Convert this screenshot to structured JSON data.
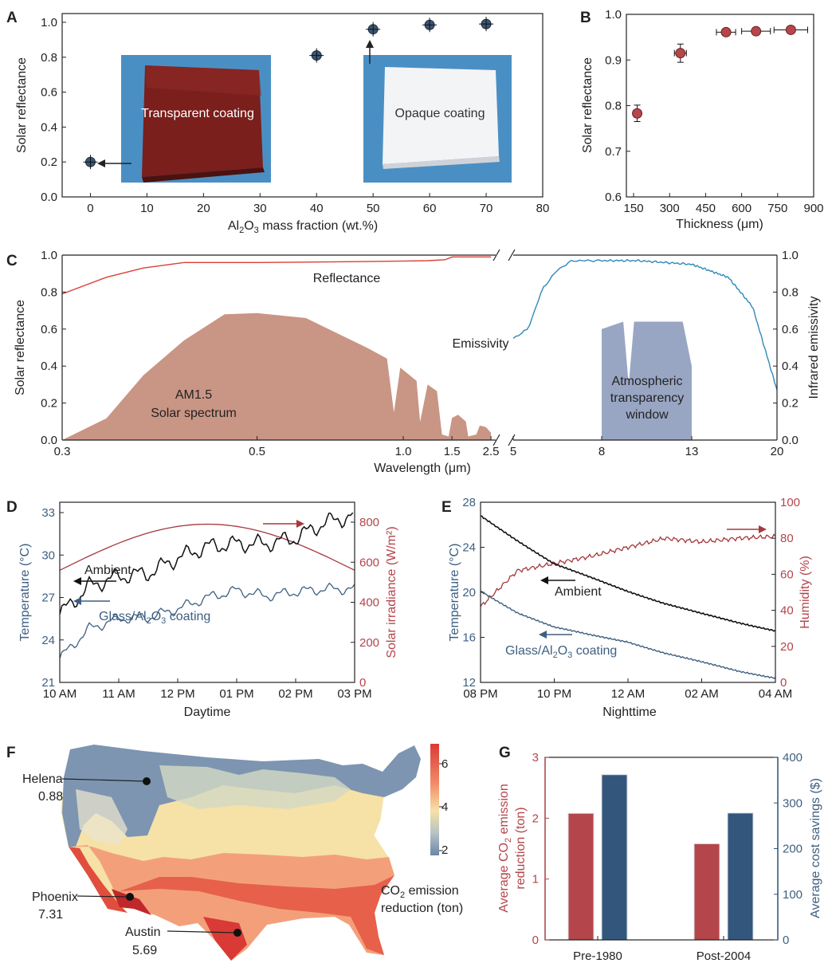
{
  "panels": {
    "A": {
      "label": "A",
      "chart_data": {
        "type": "scatter",
        "x": [
          0,
          40,
          50,
          60,
          70
        ],
        "y": [
          0.2,
          0.81,
          0.96,
          0.985,
          0.99
        ],
        "xlabel_parts": [
          "Al",
          "2",
          "O",
          "3",
          " mass fraction (wt.%)"
        ],
        "ylabel": "Solar reflectance",
        "xlim": [
          -5,
          80
        ],
        "ylim": [
          0,
          1.05
        ],
        "xticks": [
          "0",
          "10",
          "20",
          "30",
          "40",
          "50",
          "60",
          "70",
          "80"
        ],
        "yticks": [
          "0.0",
          "0.2",
          "0.4",
          "0.6",
          "0.8",
          "1.0"
        ],
        "annotations": [
          "Transparent coating",
          "Opaque coating"
        ]
      },
      "colors": {
        "marker": "#3a5775",
        "transparent_photo": "#7a1f1c",
        "opaque_photo": "#f3f4f6",
        "photo_bg": "#4a8fc4"
      }
    },
    "B": {
      "label": "B",
      "chart_data": {
        "type": "scatter",
        "x": [
          165,
          345,
          535,
          660,
          805
        ],
        "y": [
          0.783,
          0.915,
          0.961,
          0.963,
          0.966
        ],
        "xerr": [
          15,
          25,
          40,
          60,
          70
        ],
        "yerr": [
          0.018,
          0.02,
          0.008,
          0.008,
          0.006
        ],
        "xlabel": "Thickness (μm)",
        "ylabel": "Solar reflectance",
        "xlim": [
          120,
          900
        ],
        "ylim": [
          0.6,
          1.0
        ],
        "xticks": [
          "150",
          "300",
          "450",
          "600",
          "750",
          "900"
        ],
        "yticks": [
          "0.6",
          "0.7",
          "0.8",
          "0.9",
          "1.0"
        ]
      },
      "colors": {
        "marker": "#b5474a"
      }
    },
    "C": {
      "label": "C",
      "chart_data": {
        "type": "line",
        "xlabel": "Wavelength (μm)",
        "ylabel_left": "Solar reflectance",
        "ylabel_right": "Infrared emissivity",
        "xticks_left": [
          "0.3",
          "0.5",
          "1.0",
          "1.5",
          "2.5"
        ],
        "xticks_right": [
          "5",
          "8",
          "13",
          "20"
        ],
        "yticks": [
          "0.0",
          "0.2",
          "0.4",
          "0.6",
          "0.8",
          "1.0"
        ],
        "series": [
          {
            "name": "Reflectance",
            "x": [
              0.3,
              0.33,
              0.36,
              0.4,
              0.5,
              0.8,
              1.2,
              1.4,
              1.5,
              2.5
            ],
            "y": [
              0.79,
              0.88,
              0.93,
              0.96,
              0.96,
              0.965,
              0.97,
              0.975,
              0.99,
              0.99
            ]
          },
          {
            "name": "Emissivity",
            "x": [
              5,
              5.5,
              6,
              6.5,
              7,
              10,
              13,
              16,
              18,
              20
            ],
            "y": [
              0.55,
              0.6,
              0.82,
              0.92,
              0.97,
              0.97,
              0.95,
              0.88,
              0.72,
              0.27
            ]
          }
        ],
        "annotations": [
          "AM1.5",
          "Solar spectrum",
          "Atmospheric",
          "transparency",
          "window"
        ]
      },
      "colors": {
        "reflectance": "#d9403a",
        "emissivity": "#2f8ab8",
        "solar_fill": "#c99585",
        "window_fill": "#99a6c3"
      }
    },
    "D": {
      "label": "D",
      "chart_data": {
        "type": "line",
        "xlabel": "Daytime",
        "ylabel_left": "Temperature (°C)",
        "ylabel_right": "Solar irradiance (W/m²)",
        "xticks": [
          "10 AM",
          "11 AM",
          "12 PM",
          "01 PM",
          "02 PM",
          "03 PM"
        ],
        "yticks_left": [
          "21",
          "24",
          "27",
          "30",
          "33"
        ],
        "yticks_right": [
          "0",
          "200",
          "400",
          "600",
          "800"
        ],
        "series": [
          {
            "name": "Ambient",
            "x": [
              0,
              0.5,
              1,
              1.5,
              2,
              2.5,
              3,
              3.5,
              4,
              4.5,
              5
            ],
            "y": [
              25.8,
              27.8,
              28.5,
              28.7,
              29.8,
              30.6,
              30.8,
              30.8,
              31.2,
              32.3,
              32.8
            ]
          },
          {
            "name": "Glass/Al2O3 coating",
            "x": [
              0,
              0.5,
              1,
              1.5,
              2,
              2.5,
              3,
              3.5,
              4,
              4.5,
              5
            ],
            "y": [
              22.7,
              24.8,
              25.5,
              25.6,
              26.2,
              27.0,
              27.5,
              27.1,
              27.4,
              27.6,
              27.6
            ]
          },
          {
            "name": "Solar irradiance",
            "x": [
              0,
              1,
              2,
              3,
              4,
              5
            ],
            "y": [
              560,
              720,
              790,
              790,
              720,
              560
            ]
          }
        ],
        "annotations_parts": [
          "Ambient",
          "Glass/Al",
          "2",
          "O",
          "3",
          " coating"
        ]
      },
      "colors": {
        "ambient": "#111111",
        "coating": "#3e5f82",
        "irradiance": "#a6383c"
      }
    },
    "E": {
      "label": "E",
      "chart_data": {
        "type": "line",
        "xlabel": "Nighttime",
        "ylabel_left": "Temperature (°C)",
        "ylabel_right": "Humidity (%)",
        "xticks": [
          "08 PM",
          "10 PM",
          "12 AM",
          "02 AM",
          "04 AM"
        ],
        "yticks_left": [
          "12",
          "16",
          "20",
          "24",
          "28"
        ],
        "yticks_right": [
          "0",
          "20",
          "40",
          "60",
          "80",
          "100"
        ],
        "series": [
          {
            "name": "Ambient",
            "x": [
              0,
              1,
              2,
              3,
              4,
              5,
              6,
              7,
              8
            ],
            "y": [
              26.8,
              24.6,
              22.5,
              21.3,
              20.1,
              19.0,
              18.1,
              17.3,
              16.6
            ]
          },
          {
            "name": "Glass/Al2O3 coating",
            "x": [
              0,
              1,
              2,
              3,
              4,
              5,
              6,
              7,
              8
            ],
            "y": [
              20.1,
              18.2,
              16.9,
              16.2,
              15.6,
              14.6,
              13.8,
              13.0,
              12.4
            ]
          },
          {
            "name": "Humidity",
            "x": [
              0,
              1,
              2,
              3,
              4,
              5,
              6,
              7,
              8
            ],
            "y": [
              42,
              62,
              66,
              70,
              75,
              80,
              78,
              80,
              81
            ]
          }
        ],
        "annotations_parts": [
          "Ambient",
          "Glass/Al",
          "2",
          "O",
          "3",
          " coating"
        ]
      },
      "colors": {
        "ambient": "#111111",
        "coating": "#3e5f82",
        "humidity": "#a6383c"
      }
    },
    "F": {
      "label": "F",
      "legend_ticks": [
        "6",
        "4",
        "2"
      ],
      "legend_title_parts": [
        "CO",
        "2",
        " emission",
        "reduction (ton)"
      ],
      "cities": [
        {
          "name": "Helena",
          "value": "0.88"
        },
        {
          "name": "Phoenix",
          "value": "7.31"
        },
        {
          "name": "Austin",
          "value": "5.69"
        }
      ],
      "colors": {
        "high": "#d93a35",
        "mid": "#f6e1a7",
        "low": "#6b87a8",
        "border": "#ffffff"
      }
    },
    "G": {
      "label": "G",
      "chart_data": {
        "type": "bar",
        "categories": [
          "Pre-1980",
          "Post-2004"
        ],
        "series": [
          {
            "values": [
              2.08,
              1.58
            ],
            "axis": "left"
          },
          {
            "values": [
              362,
              278
            ],
            "axis": "right"
          }
        ],
        "ylabel_left_parts": [
          "Average CO",
          "2",
          " emission",
          "reduction (ton)"
        ],
        "ylabel_right": "Average cost savings ($)",
        "ylim_left": [
          0,
          3
        ],
        "ylim_right": [
          0,
          400
        ],
        "yticks_left": [
          "0",
          "1",
          "2",
          "3"
        ],
        "yticks_right": [
          "0",
          "100",
          "200",
          "300",
          "400"
        ]
      },
      "colors": {
        "co2": "#b4454a",
        "cost": "#33567d"
      }
    }
  }
}
